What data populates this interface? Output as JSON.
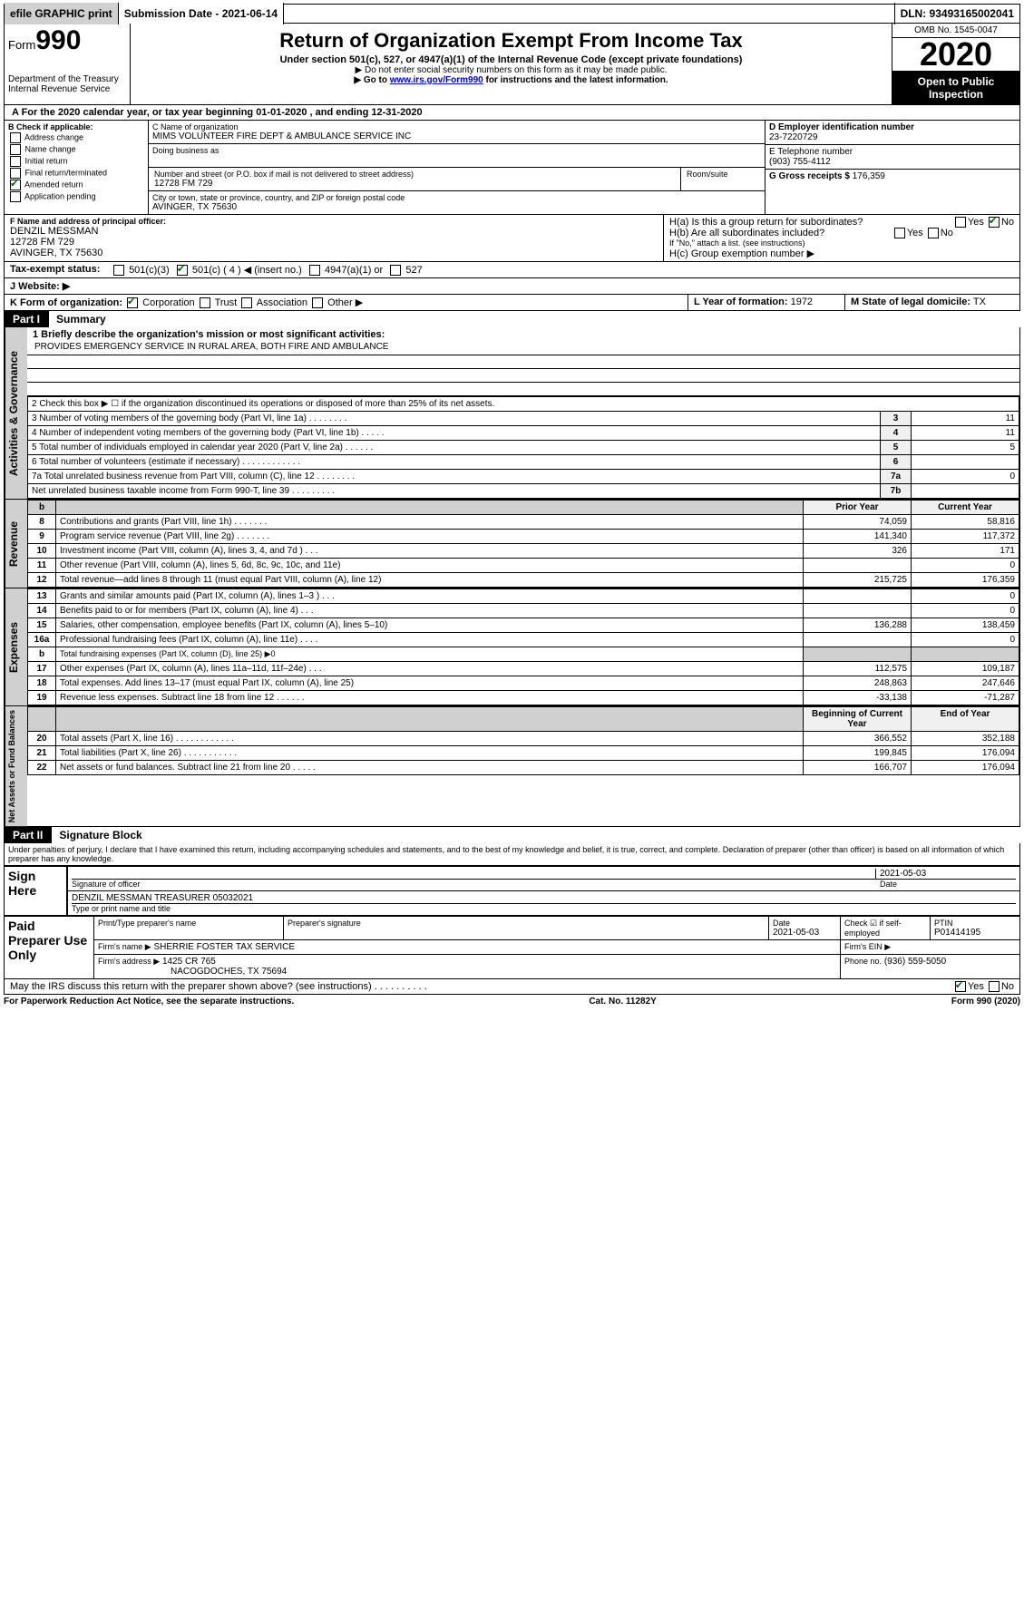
{
  "top": {
    "efile": "efile GRAPHIC print",
    "submission_label": "Submission Date - 2021-06-14",
    "dln": "DLN: 93493165002041"
  },
  "header": {
    "form_prefix": "Form",
    "form_number": "990",
    "dept": "Department of the Treasury",
    "irs": "Internal Revenue Service",
    "title": "Return of Organization Exempt From Income Tax",
    "subtitle": "Under section 501(c), 527, or 4947(a)(1) of the Internal Revenue Code (except private foundations)",
    "note1": "▶ Do not enter social security numbers on this form as it may be made public.",
    "note2_pre": "▶ Go to ",
    "note2_link": "www.irs.gov/Form990",
    "note2_post": " for instructions and the latest information.",
    "omb": "OMB No. 1545-0047",
    "year": "2020",
    "open_public1": "Open to Public",
    "open_public2": "Inspection"
  },
  "line_a": "A  For the 2020 calendar year, or tax year beginning 01-01-2020   , and ending 12-31-2020",
  "box_b": {
    "title": "B Check if applicable:",
    "opts": [
      "Address change",
      "Name change",
      "Initial return",
      "Final return/terminated",
      "Amended return",
      "Application pending"
    ]
  },
  "box_c": {
    "name_label": "C Name of organization",
    "name": "MIMS VOLUNTEER FIRE DEPT & AMBULANCE SERVICE INC",
    "dba_label": "Doing business as",
    "street_label": "Number and street (or P.O. box if mail is not delivered to street address)",
    "room_label": "Room/suite",
    "street": "12728 FM 729",
    "city_label": "City or town, state or province, country, and ZIP or foreign postal code",
    "city": "AVINGER, TX  75630"
  },
  "box_d": {
    "label": "D Employer identification number",
    "value": "23-7220729"
  },
  "box_e": {
    "label": "E Telephone number",
    "value": "(903) 755-4112"
  },
  "box_g": {
    "label": "G Gross receipts $",
    "value": "176,359"
  },
  "box_f": {
    "label": "F  Name and address of principal officer:",
    "name": "DENZIL MESSMAN",
    "street": "12728 FM 729",
    "city": "AVINGER, TX  75630"
  },
  "box_h": {
    "a": "H(a)  Is this a group return for subordinates?",
    "b": "H(b)  Are all subordinates included?",
    "note": "If \"No,\" attach a list. (see instructions)",
    "c": "H(c)  Group exemption number ▶"
  },
  "line_i": {
    "label": "Tax-exempt status:",
    "c4": "501(c) ( 4 ) ◀ (insert no.)",
    "c3": "501(c)(3)",
    "a1": "4947(a)(1) or",
    "s527": "527"
  },
  "line_j": "J   Website: ▶",
  "line_k": "K Form of organization:",
  "k_opts": [
    "Corporation",
    "Trust",
    "Association",
    "Other ▶"
  ],
  "line_l": {
    "label": "L Year of formation:",
    "value": "1972"
  },
  "line_m": {
    "label": "M State of legal domicile:",
    "value": "TX"
  },
  "part1": {
    "label": "Part I",
    "title": "Summary"
  },
  "mission_label": "1  Briefly describe the organization's mission or most significant activities:",
  "mission": "PROVIDES EMERGENCY SERVICE IN RURAL AREA, BOTH FIRE AND AMBULANCE",
  "summary_lines": {
    "l2": "2   Check this box ▶ ☐  if the organization discontinued its operations or disposed of more than 25% of its net assets.",
    "l3": {
      "desc": "3   Number of voting members of the governing body (Part VI, line 1a)   .    .    .    .    .    .    .    .",
      "col": "3",
      "val": "11"
    },
    "l4": {
      "desc": "4   Number of independent voting members of the governing body (Part VI, line 1b)   .    .    .    .    .",
      "col": "4",
      "val": "11"
    },
    "l5": {
      "desc": "5   Total number of individuals employed in calendar year 2020 (Part V, line 2a)   .    .    .    .    .    .",
      "col": "5",
      "val": "5"
    },
    "l6": {
      "desc": "6   Total number of volunteers (estimate if necessary)   .    .    .    .    .    .    .    .    .    .    .    .",
      "col": "6",
      "val": ""
    },
    "l7a": {
      "desc": "7a  Total unrelated business revenue from Part VIII, column (C), line 12   .    .    .    .    .    .    .    .",
      "col": "7a",
      "val": "0"
    },
    "l7b": {
      "desc": "    Net unrelated business taxable income from Form 990-T, line 39   .    .    .    .    .    .    .    .    .",
      "col": "7b",
      "val": ""
    }
  },
  "finance_headers": {
    "prior": "Prior Year",
    "current": "Current Year",
    "begin": "Beginning of Current Year",
    "end": "End of Year"
  },
  "revenue": [
    {
      "n": "8",
      "desc": "Contributions and grants (Part VIII, line 1h)   .    .    .    .    .    .    .",
      "prior": "74,059",
      "cur": "58,816"
    },
    {
      "n": "9",
      "desc": "Program service revenue (Part VIII, line 2g)   .    .    .    .    .    .    .",
      "prior": "141,340",
      "cur": "117,372"
    },
    {
      "n": "10",
      "desc": "Investment income (Part VIII, column (A), lines 3, 4, and 7d )   .    .    .",
      "prior": "326",
      "cur": "171"
    },
    {
      "n": "11",
      "desc": "Other revenue (Part VIII, column (A), lines 5, 6d, 8c, 9c, 10c, and 11e)",
      "prior": "",
      "cur": "0"
    },
    {
      "n": "12",
      "desc": "Total revenue—add lines 8 through 11 (must equal Part VIII, column (A), line 12)",
      "prior": "215,725",
      "cur": "176,359"
    }
  ],
  "expenses": [
    {
      "n": "13",
      "desc": "Grants and similar amounts paid (Part IX, column (A), lines 1–3 )   .    .    .",
      "prior": "",
      "cur": "0"
    },
    {
      "n": "14",
      "desc": "Benefits paid to or for members (Part IX, column (A), line 4)   .    .    .",
      "prior": "",
      "cur": "0"
    },
    {
      "n": "15",
      "desc": "Salaries, other compensation, employee benefits (Part IX, column (A), lines 5–10)",
      "prior": "136,288",
      "cur": "138,459"
    },
    {
      "n": "16a",
      "desc": "Professional fundraising fees (Part IX, column (A), line 11e)   .    .    .    .",
      "prior": "",
      "cur": "0"
    },
    {
      "n": "b",
      "desc": "Total fundraising expenses (Part IX, column (D), line 25) ▶0",
      "prior": "—",
      "cur": "—"
    },
    {
      "n": "17",
      "desc": "Other expenses (Part IX, column (A), lines 11a–11d, 11f–24e)   .    .    .",
      "prior": "112,575",
      "cur": "109,187"
    },
    {
      "n": "18",
      "desc": "Total expenses. Add lines 13–17 (must equal Part IX, column (A), line 25)",
      "prior": "248,863",
      "cur": "247,646"
    },
    {
      "n": "19",
      "desc": "Revenue less expenses. Subtract line 18 from line 12   .    .    .    .    .    .",
      "prior": "-33,138",
      "cur": "-71,287"
    }
  ],
  "netassets": [
    {
      "n": "20",
      "desc": "Total assets (Part X, line 16)   .    .    .    .    .    .    .    .    .    .    .    .",
      "prior": "366,552",
      "cur": "352,188"
    },
    {
      "n": "21",
      "desc": "Total liabilities (Part X, line 26)   .    .    .    .    .    .    .    .    .    .    .",
      "prior": "199,845",
      "cur": "176,094"
    },
    {
      "n": "22",
      "desc": "Net assets or fund balances. Subtract line 21 from line 20   .    .    .    .    .",
      "prior": "166,707",
      "cur": "176,094"
    }
  ],
  "side_labels": {
    "gov": "Activities & Governance",
    "rev": "Revenue",
    "exp": "Expenses",
    "net": "Net Assets or Fund Balances"
  },
  "part2": {
    "label": "Part II",
    "title": "Signature Block"
  },
  "perjury": "Under penalties of perjury, I declare that I have examined this return, including accompanying schedules and statements, and to the best of my knowledge and belief, it is true, correct, and complete. Declaration of preparer (other than officer) is based on all information of which preparer has any knowledge.",
  "sign": {
    "here": "Sign Here",
    "sig_officer": "Signature of officer",
    "date": "2021-05-03",
    "date_label": "Date",
    "name_title": "DENZIL MESSMAN  TREASURER 05032021",
    "type_label": "Type or print name and title"
  },
  "paid": {
    "label": "Paid Preparer Use Only",
    "h1": "Print/Type preparer's name",
    "h2": "Preparer's signature",
    "h3": "Date",
    "h3v": "2021-05-03",
    "h4": "Check ☑ if self-employed",
    "h5": "PTIN",
    "h5v": "P01414195",
    "firm_name_label": "Firm's name    ▶",
    "firm_name": "SHERRIE FOSTER TAX SERVICE",
    "firm_ein": "Firm's EIN ▶",
    "firm_addr_label": "Firm's address ▶",
    "firm_addr": "1425 CR 765",
    "firm_city": "NACOGDOCHES, TX  75694",
    "phone_label": "Phone no.",
    "phone": "(936) 559-5050"
  },
  "discuss": "May the IRS discuss this return with the preparer shown above? (see instructions)   .    .    .    .    .    .    .    .    .    .",
  "footer": {
    "left": "For Paperwork Reduction Act Notice, see the separate instructions.",
    "mid": "Cat. No. 11282Y",
    "right": "Form 990 (2020)"
  }
}
